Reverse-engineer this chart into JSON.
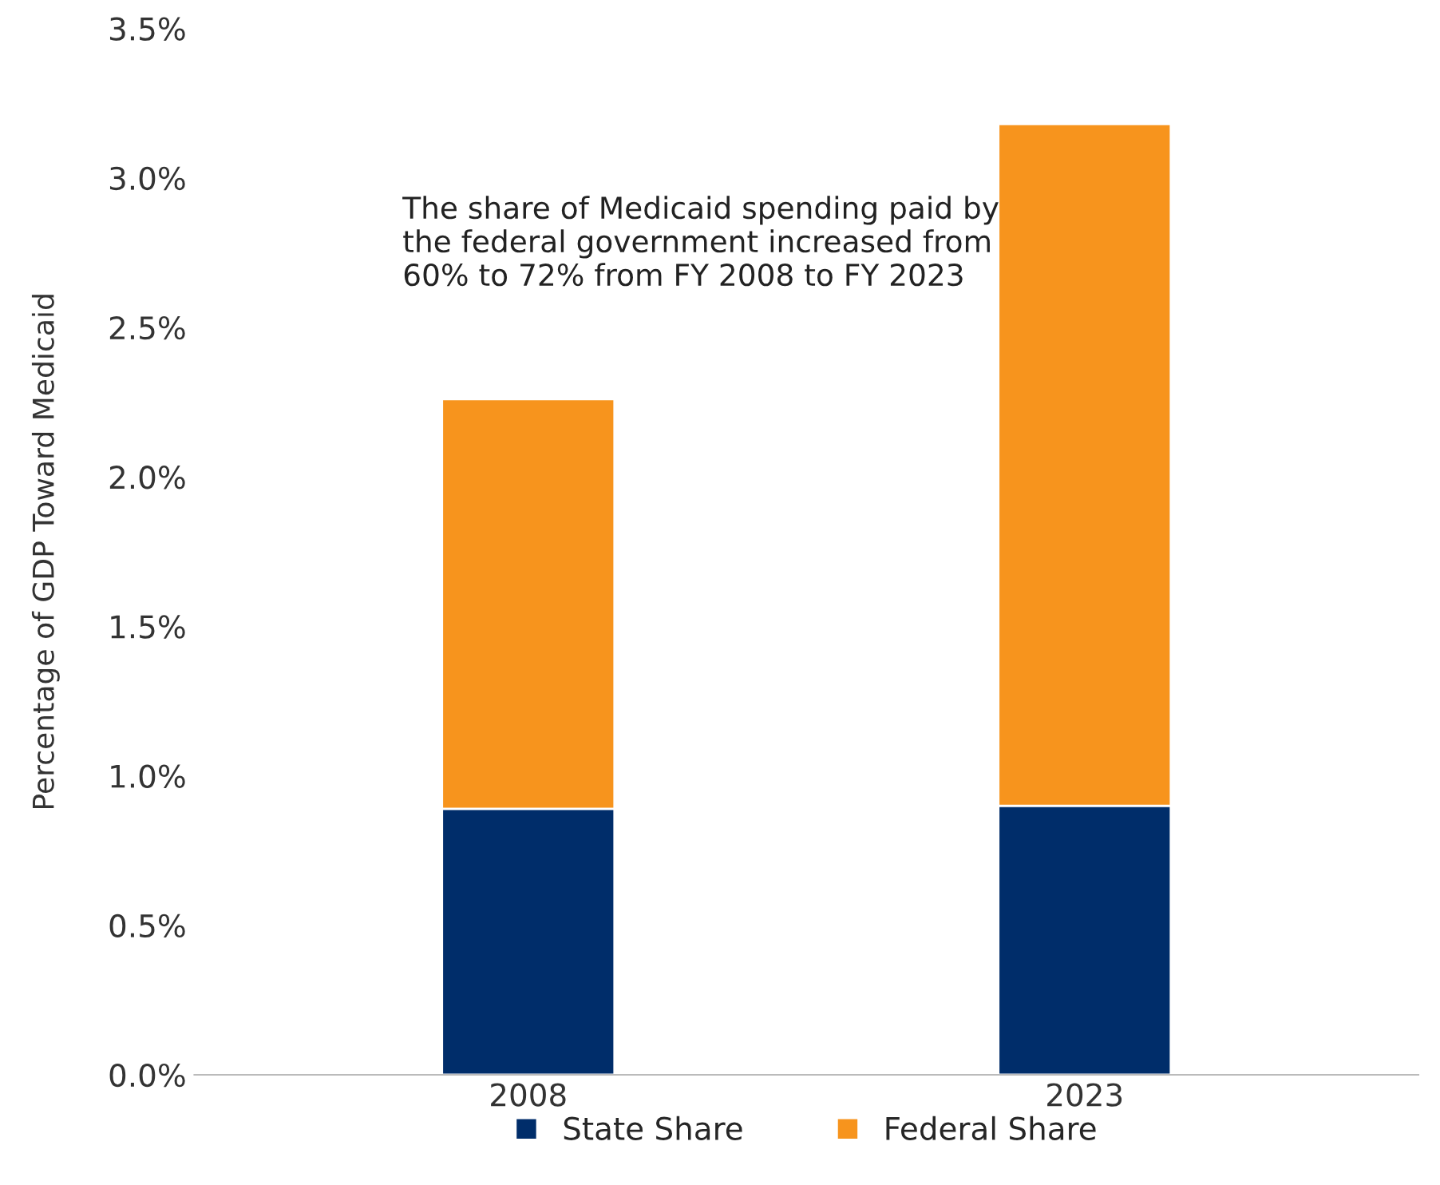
{
  "chart_data": {
    "type": "bar",
    "stacked": true,
    "ylabel": "Percentage of GDP Toward Medicaid",
    "categories": [
      "2008",
      "2023"
    ],
    "series": [
      {
        "name": "State Share",
        "color": "#002d6a",
        "values": [
          0.89,
          0.9
        ]
      },
      {
        "name": "Federal Share",
        "color": "#f7941d",
        "values": [
          1.37,
          2.28
        ]
      }
    ],
    "ylim": [
      0,
      3.5
    ],
    "yticks": [
      {
        "value": 0,
        "label": "0.0%"
      },
      {
        "value": 0.5,
        "label": "0.5%"
      },
      {
        "value": 1,
        "label": "1.0%"
      },
      {
        "value": 1.5,
        "label": "1.5%"
      },
      {
        "value": 2,
        "label": "2.0%"
      },
      {
        "value": 2.5,
        "label": "2.5%"
      },
      {
        "value": 3,
        "label": "3.0%"
      },
      {
        "value": 3.5,
        "label": "3.5%"
      }
    ],
    "annotations": [
      "The share of Medicaid spending paid by the federal government increased from 60% to 72% from FY 2008 to FY 2023"
    ],
    "legend": "bottom",
    "grid": false
  }
}
